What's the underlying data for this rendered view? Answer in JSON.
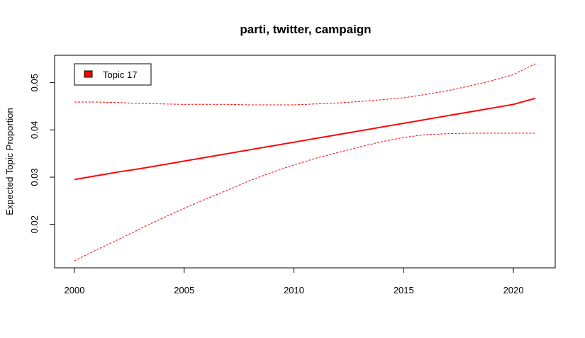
{
  "chart_data": {
    "type": "line",
    "title": "parti, twitter, campaign",
    "xlabel": "",
    "ylabel": "Expected Topic Proportion",
    "xlim": [
      2000,
      2021
    ],
    "ylim": [
      0.0123,
      0.054
    ],
    "x_ticks": [
      2000,
      2005,
      2010,
      2015,
      2020
    ],
    "y_ticks": [
      0.02,
      0.03,
      0.04,
      0.05
    ],
    "y_tick_labels": [
      "0.02",
      "0.03",
      "0.04",
      "0.05"
    ],
    "grid": false,
    "legend": {
      "position": "top-left",
      "entries": [
        "Topic 17"
      ]
    },
    "series_color": "#ff0000",
    "x": [
      2000,
      2001,
      2002,
      2003,
      2004,
      2005,
      2006,
      2007,
      2008,
      2009,
      2010,
      2011,
      2012,
      2013,
      2014,
      2015,
      2016,
      2017,
      2018,
      2019,
      2020,
      2021
    ],
    "series": [
      {
        "name": "Topic 17",
        "style": "solid",
        "values": [
          0.0295,
          0.0303,
          0.0311,
          0.0318,
          0.0326,
          0.0334,
          0.0342,
          0.035,
          0.0358,
          0.0366,
          0.0374,
          0.0382,
          0.039,
          0.0398,
          0.0406,
          0.0414,
          0.0422,
          0.043,
          0.0438,
          0.0446,
          0.0454,
          0.0467
        ]
      },
      {
        "style": "dashed",
        "values": [
          0.0459,
          0.0459,
          0.0458,
          0.0456,
          0.0455,
          0.0454,
          0.0454,
          0.0454,
          0.0453,
          0.0453,
          0.0453,
          0.0455,
          0.0457,
          0.046,
          0.0464,
          0.0468,
          0.0475,
          0.0483,
          0.0493,
          0.0504,
          0.0517,
          0.054
        ]
      },
      {
        "style": "dashed",
        "values": [
          0.0123,
          0.0146,
          0.0168,
          0.0191,
          0.0213,
          0.0234,
          0.0254,
          0.0273,
          0.0293,
          0.031,
          0.0326,
          0.034,
          0.0352,
          0.0364,
          0.0375,
          0.0384,
          0.039,
          0.0392,
          0.0393,
          0.0393,
          0.0393,
          0.0393
        ]
      }
    ]
  }
}
